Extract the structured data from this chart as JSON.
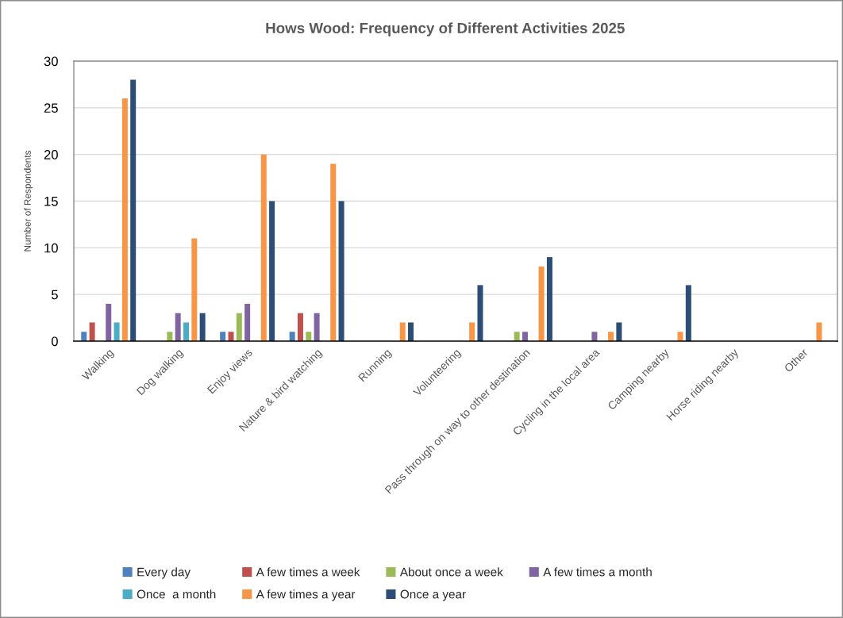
{
  "chart_data": {
    "type": "bar",
    "title": "Hows Wood: Frequency of Different Activities 2025",
    "ylabel": "Number of Respondents",
    "categories": [
      "Walking",
      "Dog walking",
      "Enjoy views",
      "Nature & bird watching",
      "Running",
      "Volunteering",
      "Pass through on way to other destination",
      "Cycling in the local area",
      "Camping nearby",
      "Horse riding nearby",
      "Other"
    ],
    "series": [
      {
        "name": "Every day",
        "color": "#4f81bd",
        "values": [
          1,
          null,
          1,
          1,
          null,
          null,
          null,
          null,
          null,
          null,
          null
        ]
      },
      {
        "name": "A few times a week",
        "color": "#c0504d",
        "values": [
          2,
          null,
          1,
          3,
          null,
          null,
          null,
          null,
          null,
          null,
          null
        ]
      },
      {
        "name": "About once a week",
        "color": "#9bbb59",
        "values": [
          null,
          1,
          3,
          1,
          null,
          null,
          1,
          null,
          null,
          null,
          null
        ]
      },
      {
        "name": "A few times a month",
        "color": "#8064a2",
        "values": [
          4,
          3,
          4,
          3,
          null,
          null,
          1,
          1,
          null,
          null,
          null
        ]
      },
      {
        "name": "Once  a month",
        "color": "#4bacc6",
        "values": [
          2,
          2,
          null,
          null,
          null,
          null,
          null,
          null,
          null,
          null,
          null
        ]
      },
      {
        "name": "A few times a year",
        "color": "#f79646",
        "values": [
          26,
          11,
          20,
          19,
          2,
          2,
          8,
          1,
          1,
          null,
          2
        ]
      },
      {
        "name": "Once a year",
        "color": "#2c4d75",
        "values": [
          28,
          3,
          15,
          15,
          2,
          6,
          9,
          2,
          6,
          null,
          null
        ]
      }
    ],
    "ylim": [
      0,
      30
    ],
    "yticks": [
      0,
      5,
      10,
      15,
      20,
      25,
      30
    ],
    "grid": "y",
    "legend": "bottom"
  }
}
